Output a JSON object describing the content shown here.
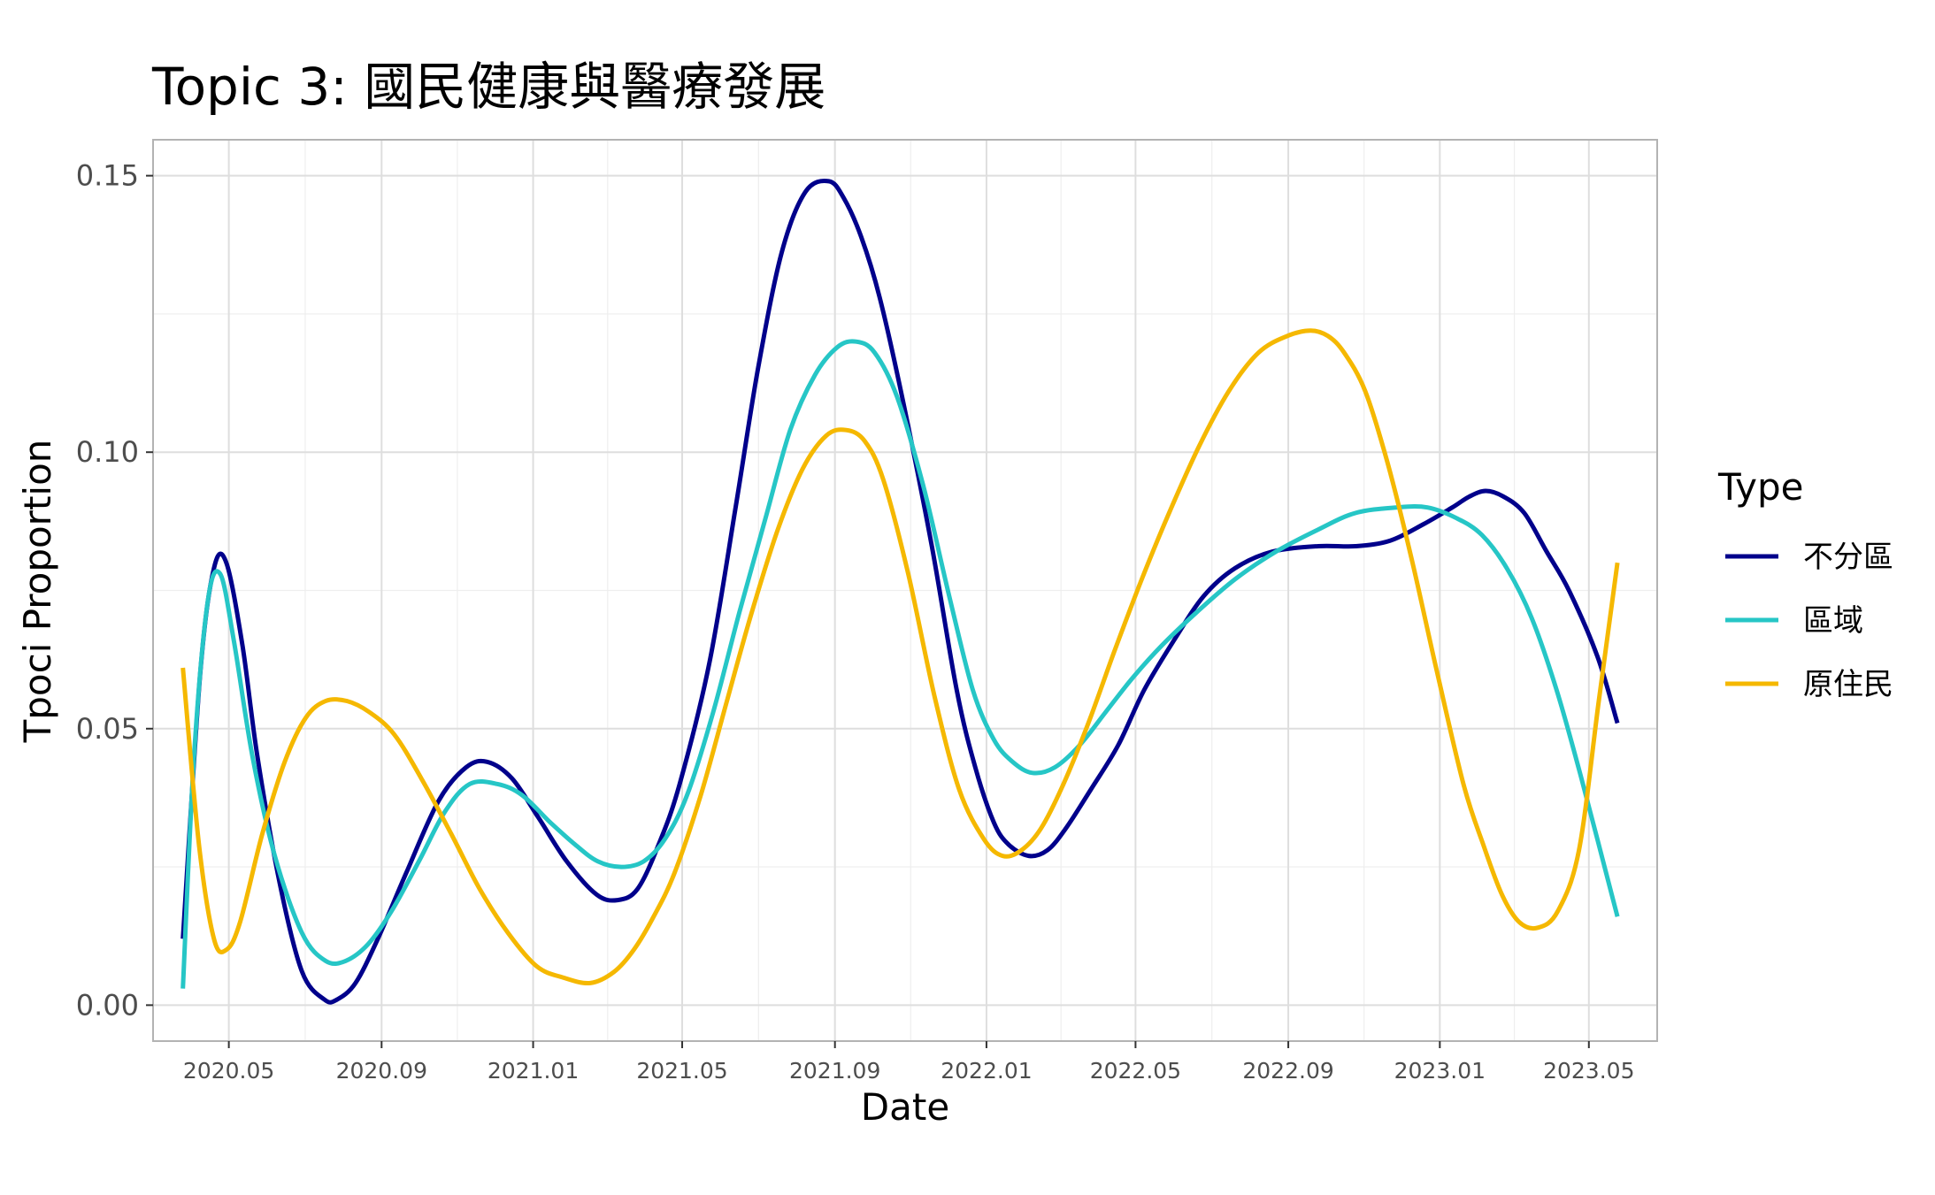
{
  "chart_data": {
    "type": "line",
    "title": "Topic 3: 國民健康與醫療發展",
    "xlabel": "Date",
    "ylabel": "Tpoci Proportion",
    "x_axis": {
      "type": "date",
      "range": [
        "2020-03-01",
        "2023-06-25"
      ],
      "ticks": [
        "2020-05-01",
        "2020-09-01",
        "2021-01-01",
        "2021-05-01",
        "2021-09-01",
        "2022-01-01",
        "2022-05-01",
        "2022-09-01",
        "2023-01-01",
        "2023-05-01"
      ],
      "tick_labels": [
        "2020.05",
        "2020.09",
        "2021.01",
        "2021.05",
        "2021.09",
        "2022.01",
        "2022.05",
        "2022.09",
        "2023.01",
        "2023.05"
      ]
    },
    "y_axis": {
      "range": [
        -0.0065,
        0.1565
      ],
      "ticks": [
        0.0,
        0.05,
        0.1,
        0.15
      ],
      "tick_labels": [
        "0.00",
        "0.05",
        "0.10",
        "0.15"
      ]
    },
    "grid": true,
    "legend": {
      "title": "Type",
      "position": "right"
    },
    "series": [
      {
        "name": "不分區",
        "color": "#00008B",
        "x": [
          "2020-03-25",
          "2020-04-08",
          "2020-04-19",
          "2020-04-29",
          "2020-05-12",
          "2020-05-24",
          "2020-06-11",
          "2020-06-29",
          "2020-07-17",
          "2020-07-27",
          "2020-08-11",
          "2020-08-29",
          "2020-09-21",
          "2020-10-17",
          "2020-11-08",
          "2020-11-25",
          "2020-12-15",
          "2021-01-05",
          "2021-01-28",
          "2021-02-21",
          "2021-03-10",
          "2021-03-26",
          "2021-04-12",
          "2021-04-29",
          "2021-05-23",
          "2021-06-13",
          "2021-07-01",
          "2021-07-20",
          "2021-08-08",
          "2021-08-27",
          "2021-09-08",
          "2021-09-22",
          "2021-10-07",
          "2021-10-26",
          "2021-11-18",
          "2021-12-08",
          "2021-12-23",
          "2022-01-07",
          "2022-01-19",
          "2022-02-04",
          "2022-02-19",
          "2022-03-06",
          "2022-03-26",
          "2022-04-17",
          "2022-05-08",
          "2022-06-01",
          "2022-06-25",
          "2022-07-20",
          "2022-08-19",
          "2022-09-25",
          "2022-10-25",
          "2022-11-22",
          "2022-12-19",
          "2023-01-11",
          "2023-01-25",
          "2023-02-07",
          "2023-02-21",
          "2023-03-10",
          "2023-03-28",
          "2023-04-15",
          "2023-05-08",
          "2023-05-24"
        ],
        "y": [
          0.012,
          0.06,
          0.079,
          0.08,
          0.065,
          0.045,
          0.022,
          0.006,
          0.001,
          0.001,
          0.004,
          0.012,
          0.024,
          0.037,
          0.043,
          0.044,
          0.041,
          0.034,
          0.026,
          0.02,
          0.019,
          0.021,
          0.029,
          0.04,
          0.062,
          0.09,
          0.115,
          0.136,
          0.147,
          0.149,
          0.146,
          0.139,
          0.128,
          0.109,
          0.083,
          0.057,
          0.043,
          0.033,
          0.029,
          0.027,
          0.028,
          0.032,
          0.039,
          0.047,
          0.057,
          0.066,
          0.074,
          0.079,
          0.082,
          0.083,
          0.083,
          0.084,
          0.087,
          0.09,
          0.092,
          0.093,
          0.092,
          0.089,
          0.082,
          0.075,
          0.063,
          0.051
        ]
      },
      {
        "name": "區域",
        "color": "#26C6C6",
        "x": [
          "2020-03-25",
          "2020-04-03",
          "2020-04-14",
          "2020-04-24",
          "2020-05-05",
          "2020-05-20",
          "2020-06-07",
          "2020-06-29",
          "2020-07-18",
          "2020-08-03",
          "2020-08-21",
          "2020-09-09",
          "2020-10-01",
          "2020-10-22",
          "2020-11-11",
          "2020-12-03",
          "2020-12-23",
          "2021-01-15",
          "2021-02-04",
          "2021-02-22",
          "2021-03-13",
          "2021-03-31",
          "2021-04-17",
          "2021-05-05",
          "2021-05-26",
          "2021-06-16",
          "2021-07-07",
          "2021-07-27",
          "2021-08-16",
          "2021-09-03",
          "2021-09-18",
          "2021-10-03",
          "2021-10-21",
          "2021-11-11",
          "2021-12-02",
          "2021-12-21",
          "2022-01-07",
          "2022-01-22",
          "2022-02-07",
          "2022-02-25",
          "2022-03-17",
          "2022-04-07",
          "2022-04-28",
          "2022-05-22",
          "2022-06-19",
          "2022-07-20",
          "2022-08-22",
          "2022-09-25",
          "2022-10-25",
          "2022-11-27",
          "2022-12-22",
          "2023-01-15",
          "2023-02-04",
          "2023-02-24",
          "2023-03-16",
          "2023-04-05",
          "2023-04-25",
          "2023-05-24"
        ],
        "y": [
          0.003,
          0.045,
          0.073,
          0.078,
          0.066,
          0.045,
          0.027,
          0.013,
          0.008,
          0.008,
          0.011,
          0.017,
          0.026,
          0.035,
          0.04,
          0.04,
          0.038,
          0.033,
          0.029,
          0.026,
          0.025,
          0.026,
          0.03,
          0.038,
          0.053,
          0.071,
          0.088,
          0.104,
          0.114,
          0.119,
          0.12,
          0.118,
          0.11,
          0.094,
          0.074,
          0.057,
          0.048,
          0.044,
          0.042,
          0.043,
          0.047,
          0.053,
          0.059,
          0.065,
          0.071,
          0.077,
          0.082,
          0.086,
          0.089,
          0.09,
          0.09,
          0.088,
          0.085,
          0.079,
          0.07,
          0.057,
          0.041,
          0.016
        ]
      },
      {
        "name": "原住民",
        "color": "#F5B800",
        "x": [
          "2020-03-25",
          "2020-04-07",
          "2020-04-19",
          "2020-04-29",
          "2020-05-10",
          "2020-05-28",
          "2020-06-15",
          "2020-07-02",
          "2020-07-18",
          "2020-08-04",
          "2020-08-22",
          "2020-09-11",
          "2020-10-03",
          "2020-10-27",
          "2020-11-19",
          "2020-12-12",
          "2021-01-04",
          "2021-01-25",
          "2021-02-16",
          "2021-03-07",
          "2021-03-23",
          "2021-04-08",
          "2021-04-25",
          "2021-05-16",
          "2021-06-06",
          "2021-06-26",
          "2021-07-17",
          "2021-08-06",
          "2021-08-25",
          "2021-09-10",
          "2021-09-25",
          "2021-10-10",
          "2021-10-30",
          "2021-11-20",
          "2021-12-10",
          "2021-12-30",
          "2022-01-14",
          "2022-01-29",
          "2022-02-14",
          "2022-03-04",
          "2022-03-24",
          "2022-04-14",
          "2022-05-06",
          "2022-05-28",
          "2022-06-21",
          "2022-07-15",
          "2022-08-08",
          "2022-08-31",
          "2022-09-19",
          "2022-10-03",
          "2022-10-16",
          "2022-11-02",
          "2022-11-20",
          "2022-12-09",
          "2022-12-29",
          "2023-01-20",
          "2023-02-05",
          "2023-02-20",
          "2023-03-06",
          "2023-03-21",
          "2023-04-06",
          "2023-04-23",
          "2023-05-09",
          "2023-05-24"
        ],
        "y": [
          0.061,
          0.029,
          0.012,
          0.01,
          0.015,
          0.031,
          0.044,
          0.052,
          0.055,
          0.055,
          0.053,
          0.049,
          0.041,
          0.031,
          0.021,
          0.013,
          0.007,
          0.005,
          0.004,
          0.006,
          0.01,
          0.016,
          0.024,
          0.038,
          0.055,
          0.071,
          0.086,
          0.097,
          0.103,
          0.104,
          0.102,
          0.095,
          0.078,
          0.056,
          0.039,
          0.03,
          0.027,
          0.028,
          0.032,
          0.04,
          0.051,
          0.064,
          0.077,
          0.089,
          0.101,
          0.111,
          0.118,
          0.121,
          0.122,
          0.121,
          0.118,
          0.111,
          0.098,
          0.081,
          0.061,
          0.04,
          0.029,
          0.02,
          0.015,
          0.014,
          0.017,
          0.028,
          0.055,
          0.08
        ]
      }
    ]
  }
}
